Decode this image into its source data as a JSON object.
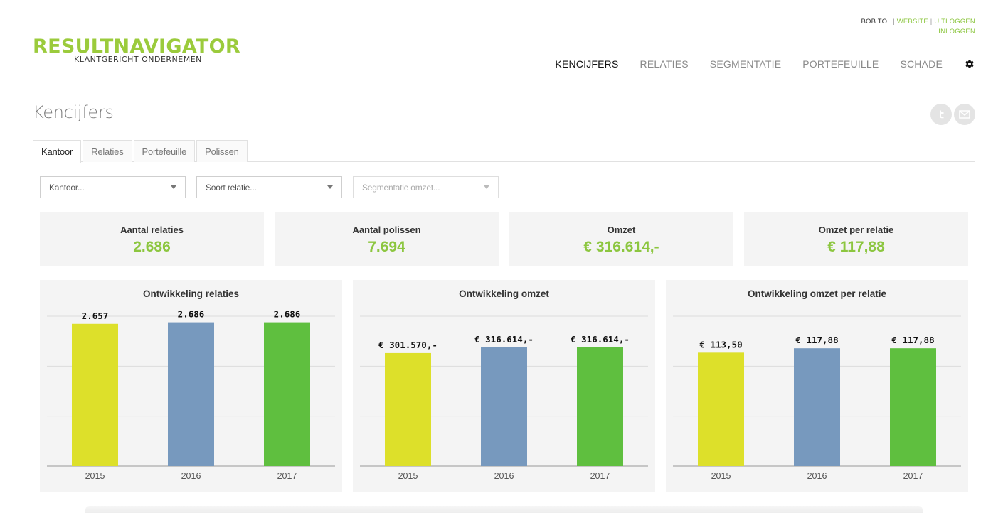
{
  "userbar": {
    "name": "BOB TOL",
    "website": "WEBSITE",
    "logout": "UITLOGGEN",
    "login": "INLOGGEN"
  },
  "logo": {
    "brand": "RESULTNAVIGATOR",
    "tagline": "KLANTGERICHT ONDERNEMEN"
  },
  "nav": {
    "items": [
      "KENCIJFERS",
      "RELATIES",
      "SEGMENTATIE",
      "PORTEFEUILLE",
      "SCHADE"
    ],
    "active_index": 0,
    "settings_icon": "gear-icon"
  },
  "page": {
    "title": "Kencijfers",
    "social_icons": [
      "twitter-icon",
      "mail-icon"
    ]
  },
  "subtabs": {
    "items": [
      "Kantoor",
      "Relaties",
      "Portefeuille",
      "Polissen"
    ],
    "active_index": 0
  },
  "filters": [
    {
      "placeholder": "Kantoor..."
    },
    {
      "placeholder": "Soort relatie..."
    },
    {
      "placeholder": "Segmentatie omzet..."
    }
  ],
  "kpis": [
    {
      "label": "Aantal relaties",
      "value": "2.686"
    },
    {
      "label": "Aantal polissen",
      "value": "7.694"
    },
    {
      "label": "Omzet",
      "value": "€ 316.614,-"
    },
    {
      "label": "Omzet per relatie",
      "value": "€ 117,88"
    }
  ],
  "colors": {
    "accent": "#8cc63f",
    "bar_2015": "#dde02a",
    "bar_2016": "#7799be",
    "bar_2017": "#5fbf3f"
  },
  "chart_data": [
    {
      "type": "bar",
      "title": "Ontwikkeling relaties",
      "categories": [
        "2015",
        "2016",
        "2017"
      ],
      "values": [
        2657,
        2686,
        2686
      ],
      "data_labels": [
        "2.657",
        "2.686",
        "2.686"
      ],
      "ylim": [
        0,
        2800
      ],
      "grid": true
    },
    {
      "type": "bar",
      "title": "Ontwikkeling omzet",
      "categories": [
        "2015",
        "2016",
        "2017"
      ],
      "values": [
        301570,
        316614,
        316614
      ],
      "data_labels": [
        "€ 301.570,-",
        "€ 316.614,-",
        "€ 316.614,-"
      ],
      "ylim": [
        0,
        400000
      ],
      "grid": true
    },
    {
      "type": "bar",
      "title": "Ontwikkeling omzet per relatie",
      "categories": [
        "2015",
        "2016",
        "2017"
      ],
      "values": [
        113.5,
        117.88,
        117.88
      ],
      "data_labels": [
        "€ 113,50",
        "€ 117,88",
        "€ 117,88"
      ],
      "ylim": [
        0,
        150
      ],
      "grid": true
    }
  ]
}
